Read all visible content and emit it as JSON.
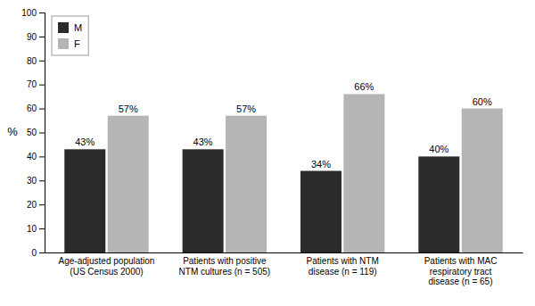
{
  "chart_data": {
    "type": "bar",
    "categories": [
      "Age-adjusted population\n(US Census 2000)",
      "Patients with positive\nNTM cultures (n = 505)",
      "Patients with NTM\ndisease (n = 119)",
      "Patients with MAC\nrespiratory tract\ndisease (n = 65)"
    ],
    "series": [
      {
        "name": "M",
        "color": "#2b2b2b",
        "values": [
          43,
          43,
          34,
          40
        ],
        "value_labels": [
          "43%",
          "43%",
          "34%",
          "40%"
        ]
      },
      {
        "name": "F",
        "color": "#b5b5b5",
        "values": [
          57,
          57,
          66,
          60
        ],
        "value_labels": [
          "57%",
          "57%",
          "66%",
          "60%"
        ]
      }
    ],
    "ylabel": "%",
    "ylim": [
      0,
      100
    ],
    "yticks": [
      0,
      10,
      20,
      30,
      40,
      50,
      60,
      70,
      80,
      90,
      100
    ],
    "data_labels": true,
    "legend": "upper left",
    "grid": false
  }
}
